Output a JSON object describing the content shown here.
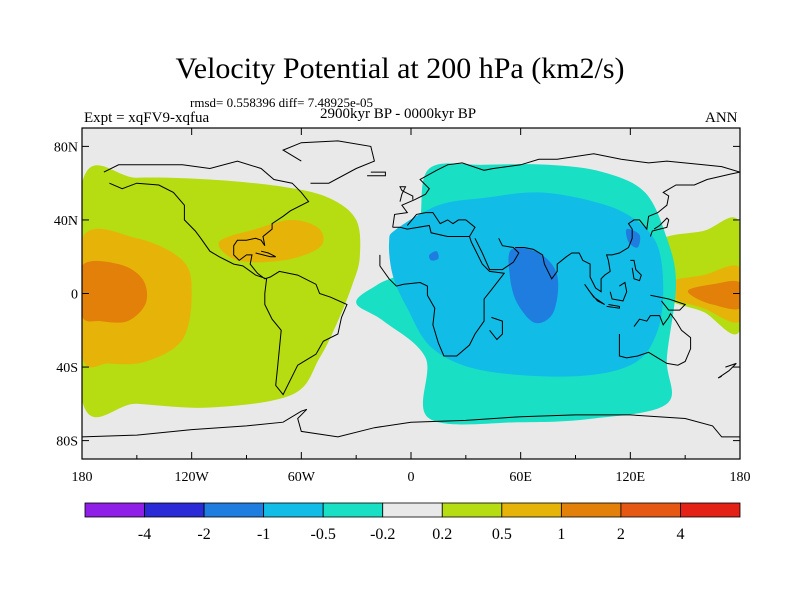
{
  "chart_data": {
    "type": "heatmap",
    "title": "Velocity Potential at 200 hPa (km2/s)",
    "stats_line": "rmsd= 0.558396 diff= 7.48925e-05",
    "experiment": "Expt = xqFV9-xqfua",
    "period": "2900kyr BP - 0000kyr BP",
    "season": "ANN",
    "x_ticks": [
      "180",
      "120W",
      "60W",
      "0",
      "60E",
      "120E",
      "180"
    ],
    "x_tick_values": [
      -180,
      -120,
      -60,
      0,
      60,
      120,
      180
    ],
    "y_ticks": [
      "80N",
      "40N",
      "0",
      "40S",
      "80S"
    ],
    "y_tick_values": [
      80,
      40,
      0,
      -40,
      -80
    ],
    "xlim": [
      -180,
      180
    ],
    "ylim": [
      -90,
      90
    ],
    "colorbar": {
      "labels": [
        "-4",
        "-2",
        "-1",
        "-0.5",
        "-0.2",
        "0.2",
        "0.5",
        "1",
        "2",
        "4"
      ],
      "colors": [
        "#8f1fe6",
        "#2a2bd6",
        "#1f7de0",
        "#11bde6",
        "#19e0c4",
        "#e9e9e9",
        "#b6dc12",
        "#e6b409",
        "#e28009",
        "#e55713",
        "#e32116"
      ]
    },
    "regions": [
      {
        "level": "0.2 to 0.5",
        "color": "#b6dc12",
        "polygon": [
          [
            -180,
            60
          ],
          [
            -150,
            63
          ],
          [
            -110,
            62
          ],
          [
            -70,
            58
          ],
          [
            -45,
            52
          ],
          [
            -30,
            40
          ],
          [
            -28,
            20
          ],
          [
            -32,
            5
          ],
          [
            -40,
            -15
          ],
          [
            -50,
            -35
          ],
          [
            -65,
            -55
          ],
          [
            -110,
            -62
          ],
          [
            -150,
            -60
          ],
          [
            -180,
            -58
          ]
        ]
      },
      {
        "level": "0.5 to 1",
        "color": "#e6b409",
        "polygon": [
          [
            -180,
            30
          ],
          [
            -150,
            30
          ],
          [
            -125,
            18
          ],
          [
            -120,
            0
          ],
          [
            -125,
            -25
          ],
          [
            -145,
            -37
          ],
          [
            -165,
            -38
          ],
          [
            -180,
            -34
          ]
        ]
      },
      {
        "level": "0.5 to 1",
        "color": "#e6b409",
        "polygon": [
          [
            -105,
            28
          ],
          [
            -85,
            35
          ],
          [
            -65,
            40
          ],
          [
            -50,
            35
          ],
          [
            -50,
            25
          ],
          [
            -70,
            18
          ],
          [
            -95,
            18
          ]
        ]
      },
      {
        "level": "1 to 2",
        "color": "#e28009",
        "polygon": [
          [
            -180,
            15
          ],
          [
            -160,
            16
          ],
          [
            -147,
            8
          ],
          [
            -145,
            -5
          ],
          [
            -155,
            -15
          ],
          [
            -170,
            -15
          ],
          [
            -180,
            -12
          ]
        ]
      },
      {
        "level": "0.2 to 0.5",
        "color": "#b6dc12",
        "polygon": [
          [
            135,
            28
          ],
          [
            160,
            34
          ],
          [
            180,
            38
          ],
          [
            180,
            -20
          ],
          [
            160,
            -10
          ],
          [
            142,
            -4
          ],
          [
            135,
            5
          ]
        ]
      },
      {
        "level": "0.5 to 1",
        "color": "#e6b409",
        "polygon": [
          [
            140,
            6
          ],
          [
            160,
            10
          ],
          [
            180,
            14
          ],
          [
            180,
            -15
          ],
          [
            160,
            -8
          ],
          [
            145,
            -3
          ]
        ]
      },
      {
        "level": "1 to 2",
        "color": "#e28009",
        "polygon": [
          [
            152,
            2
          ],
          [
            165,
            5
          ],
          [
            180,
            6
          ],
          [
            180,
            -8
          ],
          [
            165,
            -6
          ],
          [
            155,
            -2
          ]
        ]
      },
      {
        "level": "-0.5 to -0.2",
        "color": "#19e0c4",
        "polygon": [
          [
            10,
            68
          ],
          [
            40,
            70
          ],
          [
            75,
            70
          ],
          [
            105,
            66
          ],
          [
            128,
            55
          ],
          [
            140,
            30
          ],
          [
            145,
            5
          ],
          [
            140,
            -35
          ],
          [
            140,
            -60
          ],
          [
            100,
            -68
          ],
          [
            60,
            -70
          ],
          [
            10,
            -68
          ],
          [
            8,
            -35
          ],
          [
            -15,
            -15
          ],
          [
            -30,
            -5
          ],
          [
            -18,
            5
          ],
          [
            0,
            15
          ],
          [
            5,
            40
          ]
        ]
      },
      {
        "level": "-1 to -0.5",
        "color": "#11bde6",
        "polygon": [
          [
            -8,
            35
          ],
          [
            15,
            48
          ],
          [
            40,
            52
          ],
          [
            70,
            55
          ],
          [
            100,
            50
          ],
          [
            120,
            42
          ],
          [
            134,
            28
          ],
          [
            138,
            5
          ],
          [
            135,
            -20
          ],
          [
            122,
            -38
          ],
          [
            90,
            -45
          ],
          [
            40,
            -42
          ],
          [
            12,
            -30
          ],
          [
            -2,
            -8
          ],
          [
            -10,
            10
          ],
          [
            -12,
            28
          ]
        ]
      },
      {
        "level": "-2 to -1",
        "color": "#1f7de0",
        "polygon": [
          [
            55,
            24
          ],
          [
            70,
            22
          ],
          [
            80,
            10
          ],
          [
            78,
            -10
          ],
          [
            68,
            -16
          ],
          [
            58,
            -5
          ],
          [
            54,
            10
          ]
        ]
      },
      {
        "level": "-2 to -1",
        "color": "#1f7de0",
        "polygon": [
          [
            10,
            21
          ],
          [
            14,
            23
          ],
          [
            15,
            19
          ],
          [
            11,
            18
          ]
        ]
      },
      {
        "level": "-2 to -1",
        "color": "#1f7de0",
        "polygon": [
          [
            118,
            35
          ],
          [
            125,
            32
          ],
          [
            124,
            25
          ],
          [
            119,
            28
          ]
        ]
      }
    ],
    "region_labels": [
      "0.2 to 0.5",
      "0.5 to 1",
      "1 to 2",
      "-0.5 to -0.2",
      "-1 to -0.5",
      "-2 to -1"
    ],
    "region_meanings": "contour fill levels of velocity potential difference"
  }
}
